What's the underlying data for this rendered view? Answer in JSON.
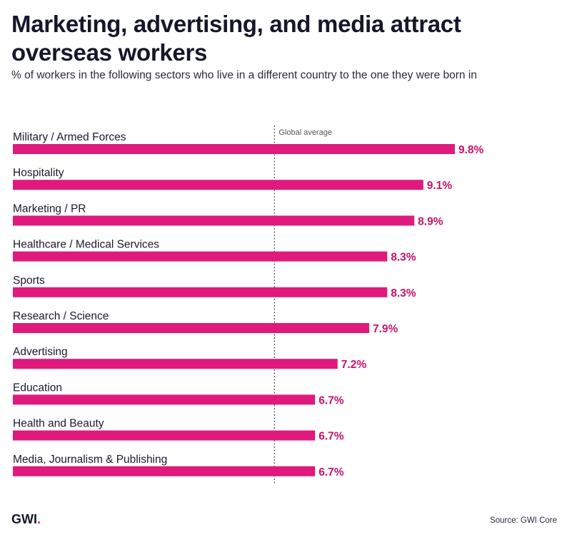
{
  "header": {
    "title": "Marketing, advertising, and media attract overseas workers",
    "subtitle": "% of workers in the following sectors who live in a different country to the one they were born in"
  },
  "footer": {
    "logo_text": "GWI",
    "logo_dot": ".",
    "source": "Source: GWI Core"
  },
  "colors": {
    "bar": "#e0197d",
    "value_label": "#c8126c",
    "average_line": "#555555"
  },
  "chart_data": {
    "type": "bar",
    "orientation": "horizontal",
    "title": "Marketing, advertising, and media attract overseas workers",
    "subtitle": "% of workers in the following sectors who live in a different country to the one they were born in",
    "categories": [
      "Military / Armed Forces",
      "Hospitality",
      "Marketing / PR",
      "Healthcare / Medical Services",
      "Sports",
      "Research / Science",
      "Advertising",
      "Education",
      "Health and Beauty",
      "Media, Journalism & Publishing"
    ],
    "values": [
      9.8,
      9.1,
      8.9,
      8.3,
      8.3,
      7.9,
      7.2,
      6.7,
      6.7,
      6.7
    ],
    "value_labels": [
      "9.8%",
      "9.1%",
      "8.9%",
      "8.3%",
      "8.3%",
      "7.9%",
      "7.2%",
      "6.7%",
      "6.7%",
      "6.7%"
    ],
    "reference_line": {
      "label": "Global average",
      "value": 5.8
    },
    "xlim": [
      0,
      9.8
    ],
    "unit": "%",
    "source": "Source: GWI Core"
  }
}
